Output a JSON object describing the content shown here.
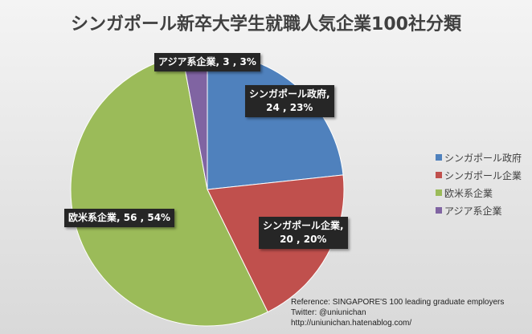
{
  "chart_data": {
    "type": "pie",
    "title": "シンガポール新卒大学生就職人気企業100社分類",
    "categories": [
      "シンガポール政府",
      "シンガポール企業",
      "欧米系企業",
      "アジア系企業"
    ],
    "values": [
      24,
      20,
      56,
      3
    ],
    "percents": [
      23,
      20,
      54,
      3
    ],
    "colors": [
      "#4f81bd",
      "#c0504d",
      "#9bbb59",
      "#8064a2"
    ],
    "data_labels": [
      "シンガポール政府, 24 , 23%",
      "シンガポール企業, 20 , 20%",
      "欧米系企業, 56 , 54%",
      "アジア系企業, 3 , 3%"
    ],
    "legend_position": "right"
  },
  "labels": {
    "gov_name": "シンガポール政府,",
    "gov_vals": "24 , 23%",
    "corp_name": "シンガポール企業,",
    "corp_vals": "20 , 20%",
    "west": "欧米系企業, 56 , 54%",
    "asia": "アジア系企業, 3 , 3%"
  },
  "reference": {
    "line1": "Reference: SINGAPORE'S   100 leading  graduate employers",
    "line2": "Twitter: @uniunichan",
    "line3": "http://uniunichan.hatenablog.com/"
  }
}
